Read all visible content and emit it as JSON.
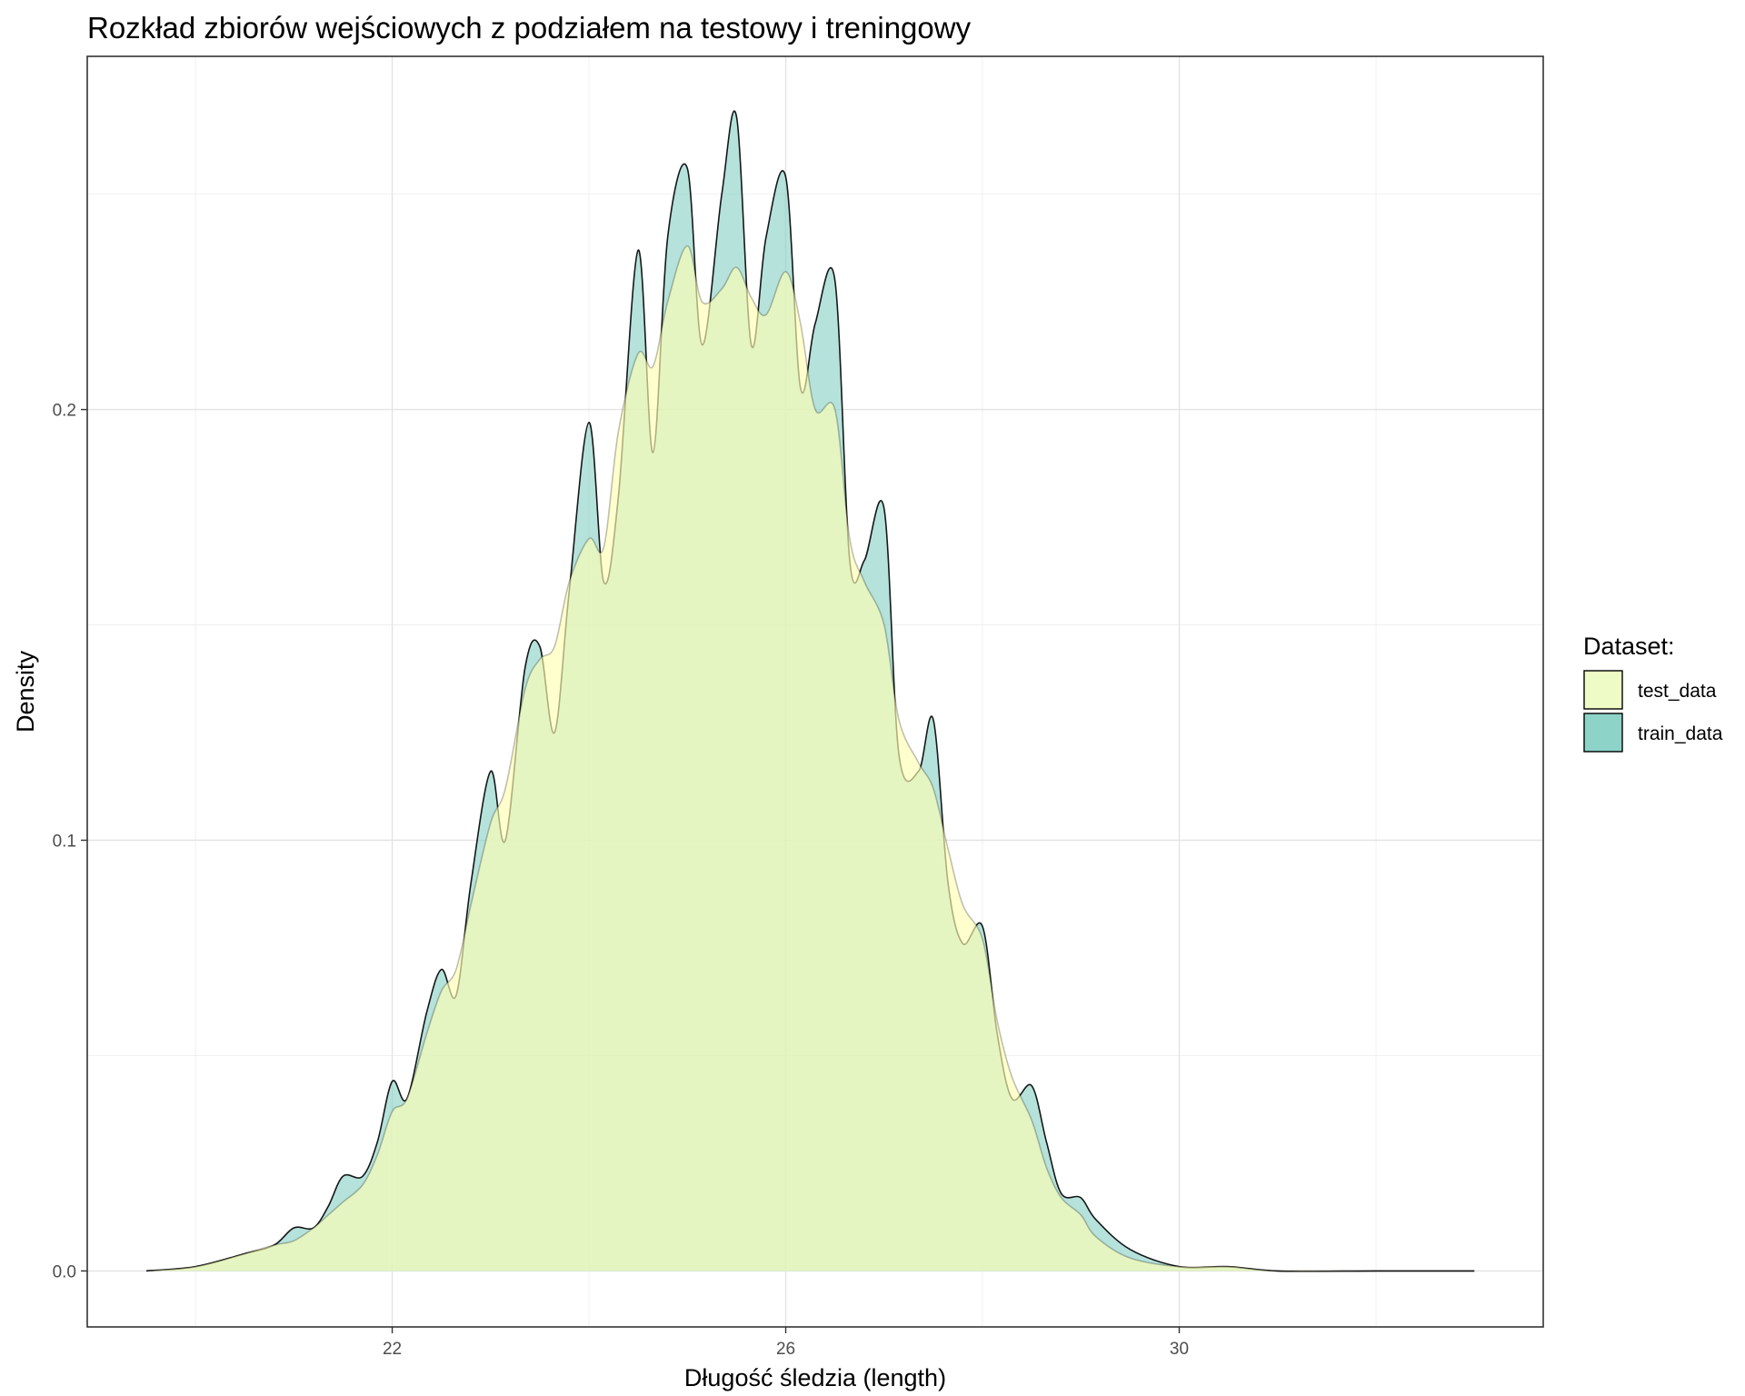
{
  "chart_data": {
    "type": "area",
    "title": "Rozkład zbiorów wejściowych z podziałem na testowy i treningowy",
    "xlabel": "Długość śledzia (length)",
    "ylabel": "Density",
    "xlim": [
      18.9,
      33.7
    ],
    "ylim": [
      -0.013,
      0.282
    ],
    "x_ticks": [
      22,
      26,
      30
    ],
    "y_ticks": [
      0.0,
      0.1,
      0.2
    ],
    "x_tick_labels": [
      "22",
      "26",
      "30"
    ],
    "y_tick_labels": [
      "0.0",
      "0.1",
      "0.2"
    ],
    "x_minor_ticks": [
      20,
      24,
      28,
      32
    ],
    "y_minor_ticks": [
      0.05,
      0.15,
      0.25
    ],
    "grid": true,
    "legend": {
      "title": "Dataset:",
      "position": "right"
    },
    "series": [
      {
        "name": "train_data",
        "fill": "#8dd3c7",
        "fill_opacity": 0.65,
        "x": [
          19.5,
          20.0,
          20.5,
          20.8,
          21.0,
          21.2,
          21.35,
          21.5,
          21.7,
          21.85,
          22.0,
          22.15,
          22.35,
          22.5,
          22.65,
          22.8,
          23.0,
          23.15,
          23.35,
          23.5,
          23.65,
          23.8,
          24.0,
          24.15,
          24.3,
          24.5,
          24.65,
          24.8,
          25.0,
          25.15,
          25.35,
          25.5,
          25.65,
          25.8,
          26.0,
          26.15,
          26.3,
          26.5,
          26.65,
          26.8,
          27.0,
          27.15,
          27.35,
          27.5,
          27.65,
          27.8,
          28.0,
          28.15,
          28.3,
          28.5,
          28.65,
          28.8,
          29.0,
          29.15,
          29.5,
          30.0,
          30.5,
          31.0,
          32.0,
          33.0
        ],
        "values": [
          0.0,
          0.001,
          0.004,
          0.006,
          0.01,
          0.01,
          0.015,
          0.022,
          0.022,
          0.03,
          0.044,
          0.04,
          0.06,
          0.07,
          0.064,
          0.09,
          0.116,
          0.1,
          0.14,
          0.145,
          0.125,
          0.158,
          0.197,
          0.16,
          0.18,
          0.237,
          0.19,
          0.24,
          0.256,
          0.215,
          0.25,
          0.268,
          0.215,
          0.24,
          0.254,
          0.205,
          0.22,
          0.23,
          0.165,
          0.165,
          0.177,
          0.12,
          0.116,
          0.128,
          0.09,
          0.076,
          0.08,
          0.055,
          0.04,
          0.043,
          0.03,
          0.018,
          0.017,
          0.012,
          0.005,
          0.001,
          0.001,
          0.0,
          0.0,
          0.0
        ]
      },
      {
        "name": "test_data",
        "fill": "#ffffb3",
        "fill_opacity": 0.65,
        "x": [
          19.5,
          20.0,
          20.5,
          20.8,
          21.0,
          21.2,
          21.35,
          21.5,
          21.7,
          21.85,
          22.0,
          22.15,
          22.35,
          22.5,
          22.65,
          22.8,
          23.0,
          23.15,
          23.35,
          23.5,
          23.65,
          23.8,
          24.0,
          24.15,
          24.3,
          24.5,
          24.65,
          24.8,
          25.0,
          25.15,
          25.35,
          25.5,
          25.65,
          25.8,
          26.0,
          26.15,
          26.3,
          26.5,
          26.65,
          26.8,
          27.0,
          27.15,
          27.35,
          27.5,
          27.65,
          27.8,
          28.0,
          28.15,
          28.3,
          28.5,
          28.65,
          28.8,
          29.0,
          29.15,
          29.5,
          30.0,
          30.5,
          31.0,
          32.0,
          33.0
        ],
        "values": [
          0.0,
          0.001,
          0.004,
          0.006,
          0.007,
          0.01,
          0.013,
          0.016,
          0.02,
          0.027,
          0.037,
          0.04,
          0.055,
          0.065,
          0.07,
          0.085,
          0.104,
          0.112,
          0.135,
          0.142,
          0.145,
          0.16,
          0.17,
          0.168,
          0.195,
          0.213,
          0.21,
          0.225,
          0.238,
          0.225,
          0.228,
          0.233,
          0.226,
          0.222,
          0.232,
          0.22,
          0.2,
          0.2,
          0.17,
          0.16,
          0.15,
          0.128,
          0.118,
          0.112,
          0.098,
          0.085,
          0.077,
          0.058,
          0.045,
          0.035,
          0.024,
          0.017,
          0.013,
          0.008,
          0.003,
          0.001,
          0.001,
          0.0,
          0.0,
          0.0
        ]
      }
    ]
  }
}
